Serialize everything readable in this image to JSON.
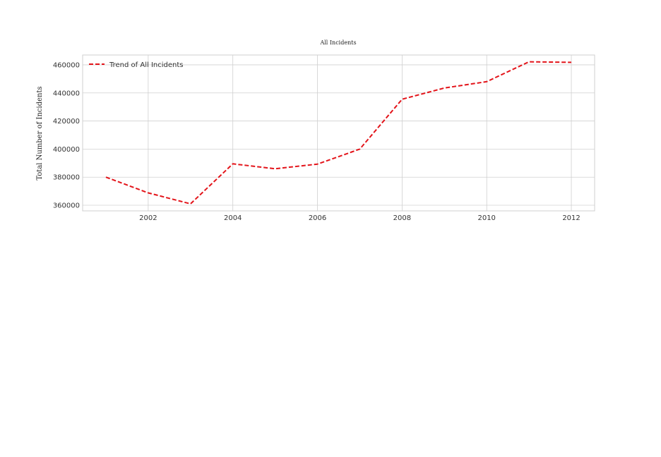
{
  "colors": {
    "series": "#e3141a",
    "grid": "#d0d0d0",
    "frame": "#cfcfcf",
    "background": "#ffffff"
  },
  "chart_data": {
    "type": "line",
    "title": "All Incidents",
    "xlabel": "",
    "ylabel": "Total Number of Incidents",
    "x": [
      2001,
      2002,
      2003,
      2004,
      2005,
      2006,
      2007,
      2008,
      2009,
      2010,
      2011,
      2012
    ],
    "series": [
      {
        "name": "Trend of All Incidents",
        "style": "dashed",
        "values": [
          380000,
          368800,
          361000,
          389500,
          386000,
          389300,
          400000,
          435500,
          443500,
          448000,
          462200,
          461800
        ]
      }
    ],
    "xlim": [
      2000.45,
      2012.55
    ],
    "ylim": [
      356000,
      467000
    ],
    "xticks": [
      2002,
      2004,
      2006,
      2008,
      2010,
      2012
    ],
    "yticks": [
      360000,
      380000,
      400000,
      420000,
      440000,
      460000
    ],
    "grid": true,
    "legend_position": "top-left"
  }
}
